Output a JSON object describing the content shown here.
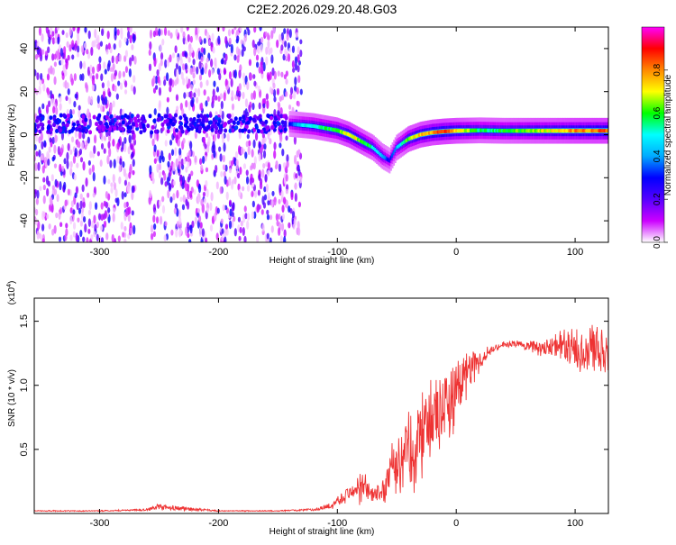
{
  "title": "C2E2.2026.029.20.48.G03",
  "chart_data": [
    {
      "type": "heatmap",
      "name": "spectrogram",
      "xlabel": "Height of straight line (km)",
      "ylabel": "Frequency (Hz)",
      "xlim": [
        -355,
        128
      ],
      "ylim": [
        -50,
        50
      ],
      "xticks": [
        -300,
        -200,
        -100,
        0,
        100
      ],
      "xtick_labels": [
        "-300",
        "-200",
        "-100",
        "0",
        "100"
      ],
      "yticks": [
        -40,
        -20,
        0,
        20,
        40
      ],
      "ytick_labels": [
        "-40",
        "-20",
        "0",
        "20",
        "40"
      ],
      "colorbar": {
        "label": "Normalized spectral amplitude",
        "range": [
          0,
          1
        ],
        "ticks": [
          0,
          0.2,
          0.4,
          0.6,
          0.8
        ],
        "tick_labels": [
          "0.0",
          "0.2",
          "0.4",
          "0.6",
          "0.8"
        ],
        "colors": [
          "#ffffff",
          "#cc00ff",
          "#5500ff",
          "#0000ff",
          "#00aaff",
          "#00ffff",
          "#00ff00",
          "#ffff00",
          "#ff8800",
          "#ff0000",
          "#ff00ff"
        ]
      },
      "noise_region_x": [
        -355,
        -130
      ],
      "ridge": {
        "x": [
          -140,
          -130,
          -120,
          -110,
          -100,
          -90,
          -80,
          -70,
          -62,
          -56,
          -50,
          -45,
          -40,
          -30,
          -20,
          -10,
          0,
          20,
          40,
          60,
          80,
          100,
          128
        ],
        "freq": [
          5,
          4.5,
          4,
          3,
          2,
          0,
          -3,
          -6,
          -10,
          -12,
          -6,
          -4,
          -2,
          0,
          1,
          1.5,
          1.8,
          2,
          1.8,
          1.8,
          1.8,
          1.8,
          1.8
        ],
        "amplitude": [
          0.3,
          0.5,
          0.55,
          0.6,
          0.65,
          0.8,
          0.7,
          0.55,
          0.45,
          0.3,
          0.45,
          0.55,
          0.7,
          0.8,
          0.85,
          0.9,
          0.8,
          0.6,
          0.62,
          0.7,
          0.75,
          0.85,
          0.9
        ]
      }
    },
    {
      "type": "line",
      "name": "snr",
      "xlabel": "Height of straight line (km)",
      "ylabel": "SNR (10 * v/v)",
      "scale_label": "(x10",
      "scale_exponent": "4",
      "xlim": [
        -355,
        128
      ],
      "ylim": [
        0,
        1.68
      ],
      "xticks": [
        -300,
        -200,
        -100,
        0,
        100
      ],
      "xtick_labels": [
        "-300",
        "-200",
        "-100",
        "0",
        "100"
      ],
      "yticks": [
        0.5,
        1.0,
        1.5
      ],
      "ytick_labels": [
        "0.5",
        "1.0",
        "1.5"
      ],
      "color": "#ee3333",
      "envelope": {
        "x": [
          -355,
          -300,
          -260,
          -250,
          -200,
          -150,
          -120,
          -105,
          -100,
          -95,
          -90,
          -85,
          -80,
          -75,
          -70,
          -65,
          -60,
          -55,
          -50,
          -45,
          -40,
          -35,
          -30,
          -25,
          -20,
          -15,
          -10,
          -5,
          0,
          5,
          10,
          15,
          20,
          25,
          30,
          40,
          50,
          60,
          70,
          80,
          90,
          100,
          110,
          120,
          128
        ],
        "mean": [
          0.02,
          0.02,
          0.03,
          0.05,
          0.02,
          0.02,
          0.03,
          0.06,
          0.1,
          0.13,
          0.16,
          0.19,
          0.22,
          0.18,
          0.14,
          0.16,
          0.2,
          0.3,
          0.38,
          0.45,
          0.5,
          0.55,
          0.6,
          0.65,
          0.7,
          0.76,
          0.82,
          0.9,
          0.98,
          1.05,
          1.1,
          1.15,
          1.2,
          1.24,
          1.28,
          1.32,
          1.32,
          1.31,
          1.3,
          1.3,
          1.3,
          1.3,
          1.28,
          1.27,
          1.26
        ],
        "spread": [
          0.005,
          0.005,
          0.01,
          0.03,
          0.005,
          0.005,
          0.01,
          0.03,
          0.05,
          0.06,
          0.07,
          0.1,
          0.2,
          0.1,
          0.06,
          0.08,
          0.14,
          0.25,
          0.3,
          0.35,
          0.4,
          0.42,
          0.42,
          0.4,
          0.4,
          0.38,
          0.35,
          0.35,
          0.3,
          0.25,
          0.2,
          0.15,
          0.1,
          0.06,
          0.04,
          0.03,
          0.03,
          0.05,
          0.08,
          0.1,
          0.15,
          0.2,
          0.25,
          0.25,
          0.2
        ]
      }
    }
  ]
}
